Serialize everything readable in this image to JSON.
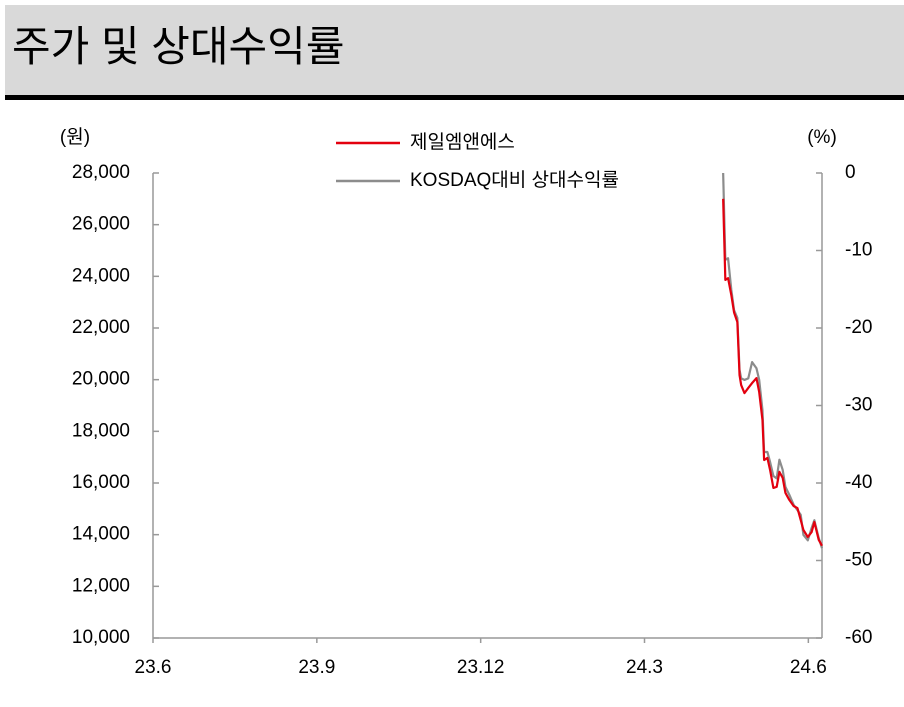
{
  "chart_data": {
    "type": "line",
    "title": "주가 및 상대수익률",
    "y_label": "(원)",
    "y2_label": "(%)",
    "xlim": [
      0,
      12.25
    ],
    "xticks": [
      {
        "value": 0,
        "label": "23.6"
      },
      {
        "value": 3,
        "label": "23.9"
      },
      {
        "value": 6,
        "label": "23.12"
      },
      {
        "value": 9,
        "label": "24.3"
      },
      {
        "value": 12,
        "label": "24.6"
      }
    ],
    "ylim": [
      10000,
      28000
    ],
    "yticks": [
      {
        "value": 10000,
        "label": "10,000"
      },
      {
        "value": 12000,
        "label": "12,000"
      },
      {
        "value": 14000,
        "label": "14,000"
      },
      {
        "value": 16000,
        "label": "16,000"
      },
      {
        "value": 18000,
        "label": "18,000"
      },
      {
        "value": 20000,
        "label": "20,000"
      },
      {
        "value": 22000,
        "label": "22,000"
      },
      {
        "value": 24000,
        "label": "24,000"
      },
      {
        "value": 26000,
        "label": "26,000"
      },
      {
        "value": 28000,
        "label": "28,000"
      }
    ],
    "y2lim": [
      -60,
      0
    ],
    "y2ticks": [
      0,
      -10,
      -20,
      -30,
      -40,
      -50,
      -60
    ],
    "legend": "top",
    "x": [
      10.44,
      10.48,
      10.53,
      10.59,
      10.64,
      10.7,
      10.74,
      10.77,
      10.83,
      10.9,
      10.97,
      11.05,
      11.1,
      11.16,
      11.19,
      11.25,
      11.3,
      11.36,
      11.42,
      11.47,
      11.53,
      11.58,
      11.65,
      11.73,
      11.8,
      11.86,
      11.91,
      11.99,
      12.06,
      12.11,
      12.19,
      12.25
    ],
    "series": [
      {
        "name": "제일엠앤에스",
        "color": "#e3000f",
        "axis": "y",
        "values": [
          27000,
          23860,
          23930,
          23270,
          22600,
          22230,
          20180,
          19790,
          19480,
          19680,
          19870,
          20060,
          19520,
          18440,
          16890,
          16970,
          16500,
          15810,
          15850,
          16430,
          16200,
          15620,
          15350,
          15110,
          15030,
          14570,
          14180,
          13910,
          14100,
          14490,
          13800,
          13570
        ]
      },
      {
        "name": "KOSDAQ대비 상대수익률",
        "color": "#8c8c8c",
        "axis": "y2",
        "values": [
          0,
          -11.2,
          -11,
          -15.1,
          -17.7,
          -18.7,
          -25.4,
          -26.5,
          -26.7,
          -26.5,
          -24.4,
          -25.2,
          -26.7,
          -30.6,
          -36,
          -36,
          -37.3,
          -39.1,
          -39.4,
          -37,
          -38.3,
          -40.5,
          -41.5,
          -42.8,
          -43.5,
          -44.1,
          -46.7,
          -47.4,
          -45.8,
          -44.8,
          -47.1,
          -48.4
        ]
      }
    ]
  }
}
